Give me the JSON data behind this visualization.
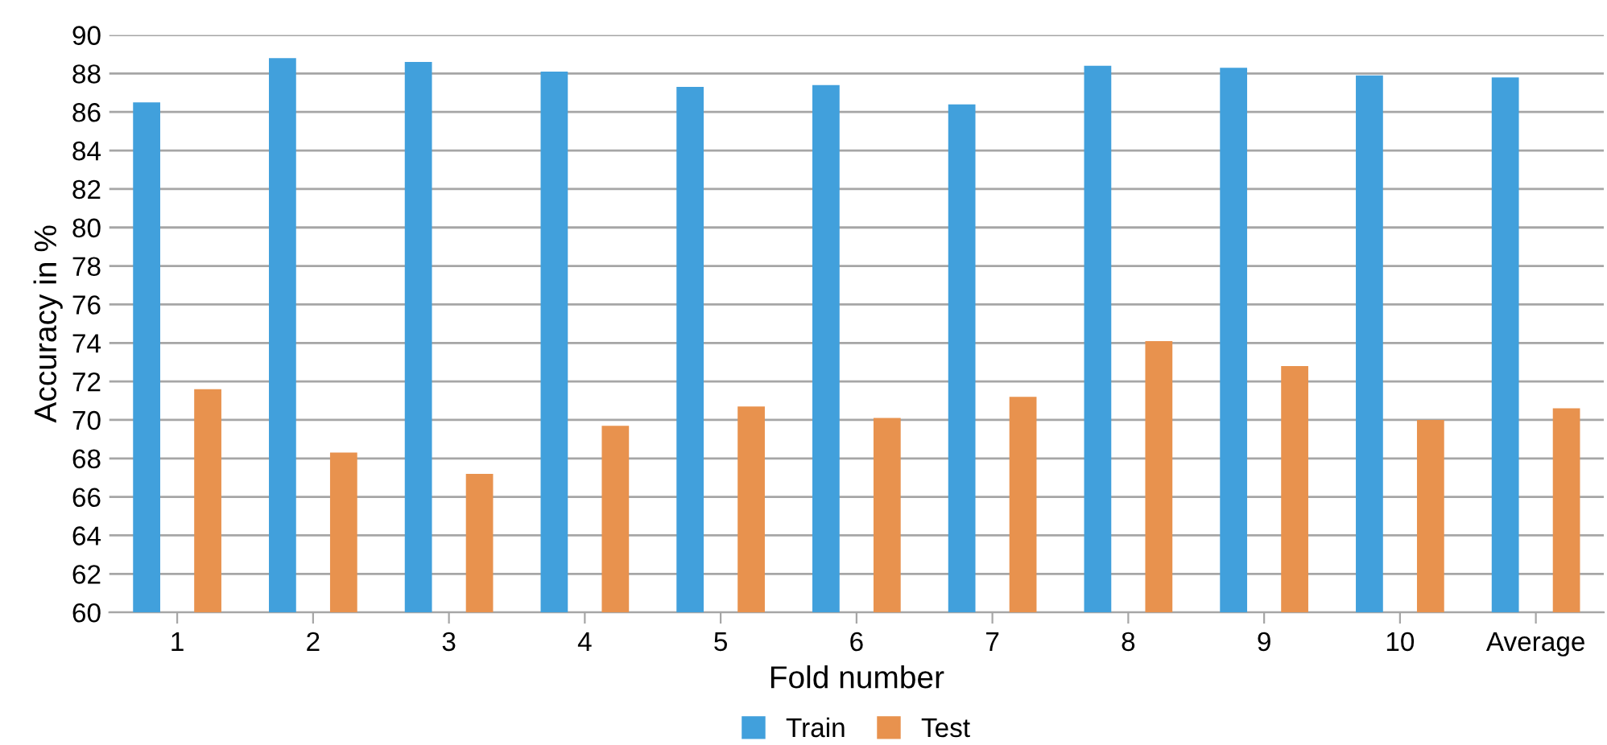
{
  "chart_data": {
    "type": "bar",
    "xlabel": "Fold number",
    "ylabel": "Accuracy in %",
    "categories": [
      "1",
      "2",
      "3",
      "4",
      "5",
      "6",
      "7",
      "8",
      "9",
      "10",
      "Average"
    ],
    "series": [
      {
        "name": "Train",
        "color": "#41a0dc",
        "values": [
          86.5,
          88.8,
          88.6,
          88.1,
          87.3,
          87.4,
          86.4,
          88.4,
          88.3,
          87.9,
          87.8
        ]
      },
      {
        "name": "Test",
        "color": "#e8924e",
        "values": [
          71.6,
          68.3,
          67.2,
          69.7,
          70.7,
          70.1,
          71.2,
          74.1,
          72.8,
          70.0,
          70.6
        ]
      }
    ],
    "ylim": [
      60,
      90
    ],
    "yticks": [
      60,
      62,
      64,
      66,
      68,
      70,
      72,
      74,
      76,
      78,
      80,
      82,
      84,
      86,
      88,
      90
    ],
    "grid": "y",
    "legend": "bottom"
  }
}
